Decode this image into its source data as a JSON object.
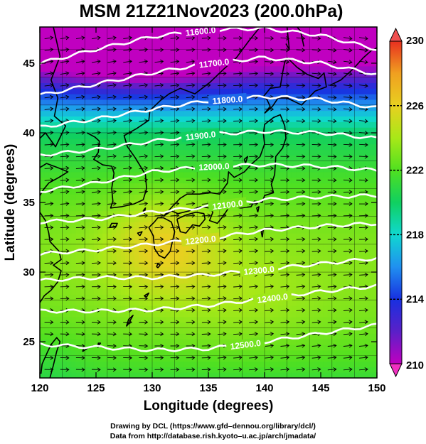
{
  "chart_data": {
    "type": "heatmap",
    "title": "MSM 21Z21Nov2023 (200.0hPa)",
    "xlabel": "Longitude (degrees)",
    "ylabel": "Latitude  (degrees)",
    "xlim": [
      120,
      150
    ],
    "ylim": [
      22.4,
      47.6
    ],
    "x_ticks": [
      120,
      125,
      130,
      135,
      140,
      145,
      150
    ],
    "x_tick_labels": [
      "120",
      "125",
      "130",
      "135",
      "140",
      "145",
      "150"
    ],
    "y_ticks": [
      25,
      30,
      35,
      40,
      45
    ],
    "y_tick_labels": [
      "25",
      "30",
      "35",
      "40",
      "45"
    ],
    "grid": true,
    "shaded_field": {
      "quantity": "temperature (K)",
      "colorbar_min": 210,
      "colorbar_max": 230,
      "colorbar_ticks": [
        "210",
        "214",
        "218",
        "222",
        "226",
        "230"
      ],
      "colormap": [
        "#c000c0",
        "#5a20c8",
        "#1830e0",
        "#2090f0",
        "#10d8d0",
        "#10d060",
        "#50e020",
        "#a8e818",
        "#e8d020",
        "#f0a020",
        "#e83020"
      ],
      "max_region": {
        "lon": 131,
        "lat": 32,
        "value": 226.5
      },
      "min_region": {
        "lon": 129,
        "lat": 46.5,
        "value": 211
      }
    },
    "contours": {
      "quantity": "geopotential height (m)",
      "color": "#ffffff",
      "lines": [
        {
          "level": 11600.0,
          "label": "11600.0",
          "points": [
            [
              120,
              45.0
            ],
            [
              125,
              46.0
            ],
            [
              130,
              46.9
            ],
            [
              135,
              47.4
            ],
            [
              140,
              47.5
            ],
            [
              145,
              47.0
            ],
            [
              150,
              46.0
            ]
          ]
        },
        {
          "level": 11700.0,
          "label": "11700.0",
          "points": [
            [
              120,
              42.7
            ],
            [
              125,
              43.5
            ],
            [
              130,
              44.3
            ],
            [
              135,
              45.0
            ],
            [
              140,
              45.4
            ],
            [
              145,
              45.0
            ],
            [
              150,
              44.2
            ]
          ]
        },
        {
          "level": 11800.0,
          "label": "11800.0",
          "points": [
            [
              120,
              40.4
            ],
            [
              125,
              41.0
            ],
            [
              130,
              41.7
            ],
            [
              135,
              42.3
            ],
            [
              140,
              42.6
            ],
            [
              145,
              42.4
            ],
            [
              150,
              41.8
            ]
          ]
        },
        {
          "level": 11900.0,
          "label": "11900.0",
          "points": [
            [
              120,
              38.4
            ],
            [
              125,
              38.8
            ],
            [
              130,
              39.4
            ],
            [
              135,
              39.9
            ],
            [
              140,
              40.1
            ],
            [
              145,
              40.0
            ],
            [
              150,
              39.6
            ]
          ]
        },
        {
          "level": 12000.0,
          "label": "12000.0",
          "points": [
            [
              120,
              35.8
            ],
            [
              125,
              36.4
            ],
            [
              130,
              37.2
            ],
            [
              135,
              37.6
            ],
            [
              140,
              37.7
            ],
            [
              145,
              37.6
            ],
            [
              150,
              37.3
            ]
          ]
        },
        {
          "level": 12100.0,
          "label": "12100.0",
          "points": [
            [
              120,
              33.6
            ],
            [
              125,
              33.8
            ],
            [
              130,
              34.3
            ],
            [
              135,
              34.7
            ],
            [
              140,
              35.2
            ],
            [
              145,
              35.4
            ],
            [
              150,
              35.5
            ]
          ]
        },
        {
          "level": 12200.0,
          "label": "12200.0",
          "points": [
            [
              120,
              31.3
            ],
            [
              125,
              31.6
            ],
            [
              130,
              32.0
            ],
            [
              135,
              32.4
            ],
            [
              140,
              33.0
            ],
            [
              145,
              33.3
            ],
            [
              150,
              33.5
            ]
          ]
        },
        {
          "level": 12300.0,
          "label": "12300.0",
          "points": [
            [
              120,
              29.4
            ],
            [
              125,
              29.6
            ],
            [
              130,
              29.6
            ],
            [
              135,
              29.8
            ],
            [
              140,
              30.2
            ],
            [
              145,
              30.6
            ],
            [
              150,
              31.0
            ]
          ]
        },
        {
          "level": 12400.0,
          "label": "12400.0",
          "points": [
            [
              120,
              27.2
            ],
            [
              125,
              27.2
            ],
            [
              130,
              27.3
            ],
            [
              135,
              27.6
            ],
            [
              140,
              28.1
            ],
            [
              145,
              28.6
            ],
            [
              150,
              29.0
            ]
          ]
        },
        {
          "level": 12500.0,
          "label": "12500.0",
          "points": [
            [
              120,
              24.8
            ],
            [
              125,
              24.6
            ],
            [
              130,
              24.4
            ],
            [
              135,
              24.5
            ],
            [
              140,
              25.0
            ],
            [
              145,
              25.6
            ],
            [
              150,
              26.2
            ]
          ]
        }
      ]
    },
    "wind_vectors": {
      "color": "#000000",
      "flow": "westerly jet, arrows pointing eastward, following height contours"
    }
  },
  "credits": {
    "line1": "Drawing by DCL (https://www.gfd–dennou.org/library/dcl/)",
    "line2": "Data from http://database.rish.kyoto–u.ac.jp/arch/jmadata/"
  }
}
